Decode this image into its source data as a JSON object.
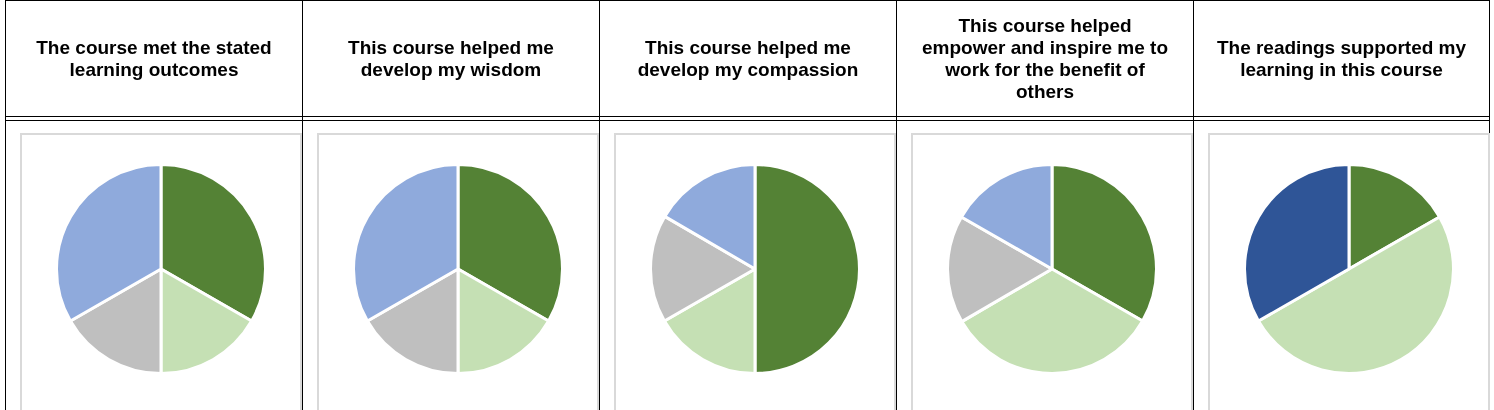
{
  "chart_data": [
    {
      "type": "pie",
      "title": "The course met the stated learning outcomes",
      "categories": [
        null,
        null,
        null,
        null
      ],
      "values": [
        33.3,
        16.7,
        16.7,
        33.3
      ],
      "colors": [
        "#548235",
        "#c5e0b4",
        "#bfbfbf",
        "#8faadc"
      ],
      "legend": false
    },
    {
      "type": "pie",
      "title": "This course helped me develop my wisdom",
      "categories": [
        null,
        null,
        null,
        null
      ],
      "values": [
        33.3,
        16.7,
        16.7,
        33.3
      ],
      "colors": [
        "#548235",
        "#c5e0b4",
        "#bfbfbf",
        "#8faadc"
      ],
      "legend": false
    },
    {
      "type": "pie",
      "title": "This course helped me develop my compassion",
      "categories": [
        null,
        null,
        null,
        null
      ],
      "values": [
        50,
        16.7,
        16.7,
        16.6
      ],
      "colors": [
        "#548235",
        "#c5e0b4",
        "#bfbfbf",
        "#8faadc"
      ],
      "legend": false
    },
    {
      "type": "pie",
      "title": "This course helped empower and inspire me to work for the benefit of others",
      "categories": [
        null,
        null,
        null,
        null
      ],
      "values": [
        33.3,
        33.3,
        16.7,
        16.7
      ],
      "colors": [
        "#548235",
        "#c5e0b4",
        "#bfbfbf",
        "#8faadc"
      ],
      "legend": false
    },
    {
      "type": "pie",
      "title": "The readings supported my learning in this course",
      "categories": [
        null,
        null,
        null
      ],
      "values": [
        16.7,
        50,
        33.3
      ],
      "colors": [
        "#548235",
        "#c5e0b4",
        "#2f5597"
      ],
      "legend": false
    }
  ]
}
